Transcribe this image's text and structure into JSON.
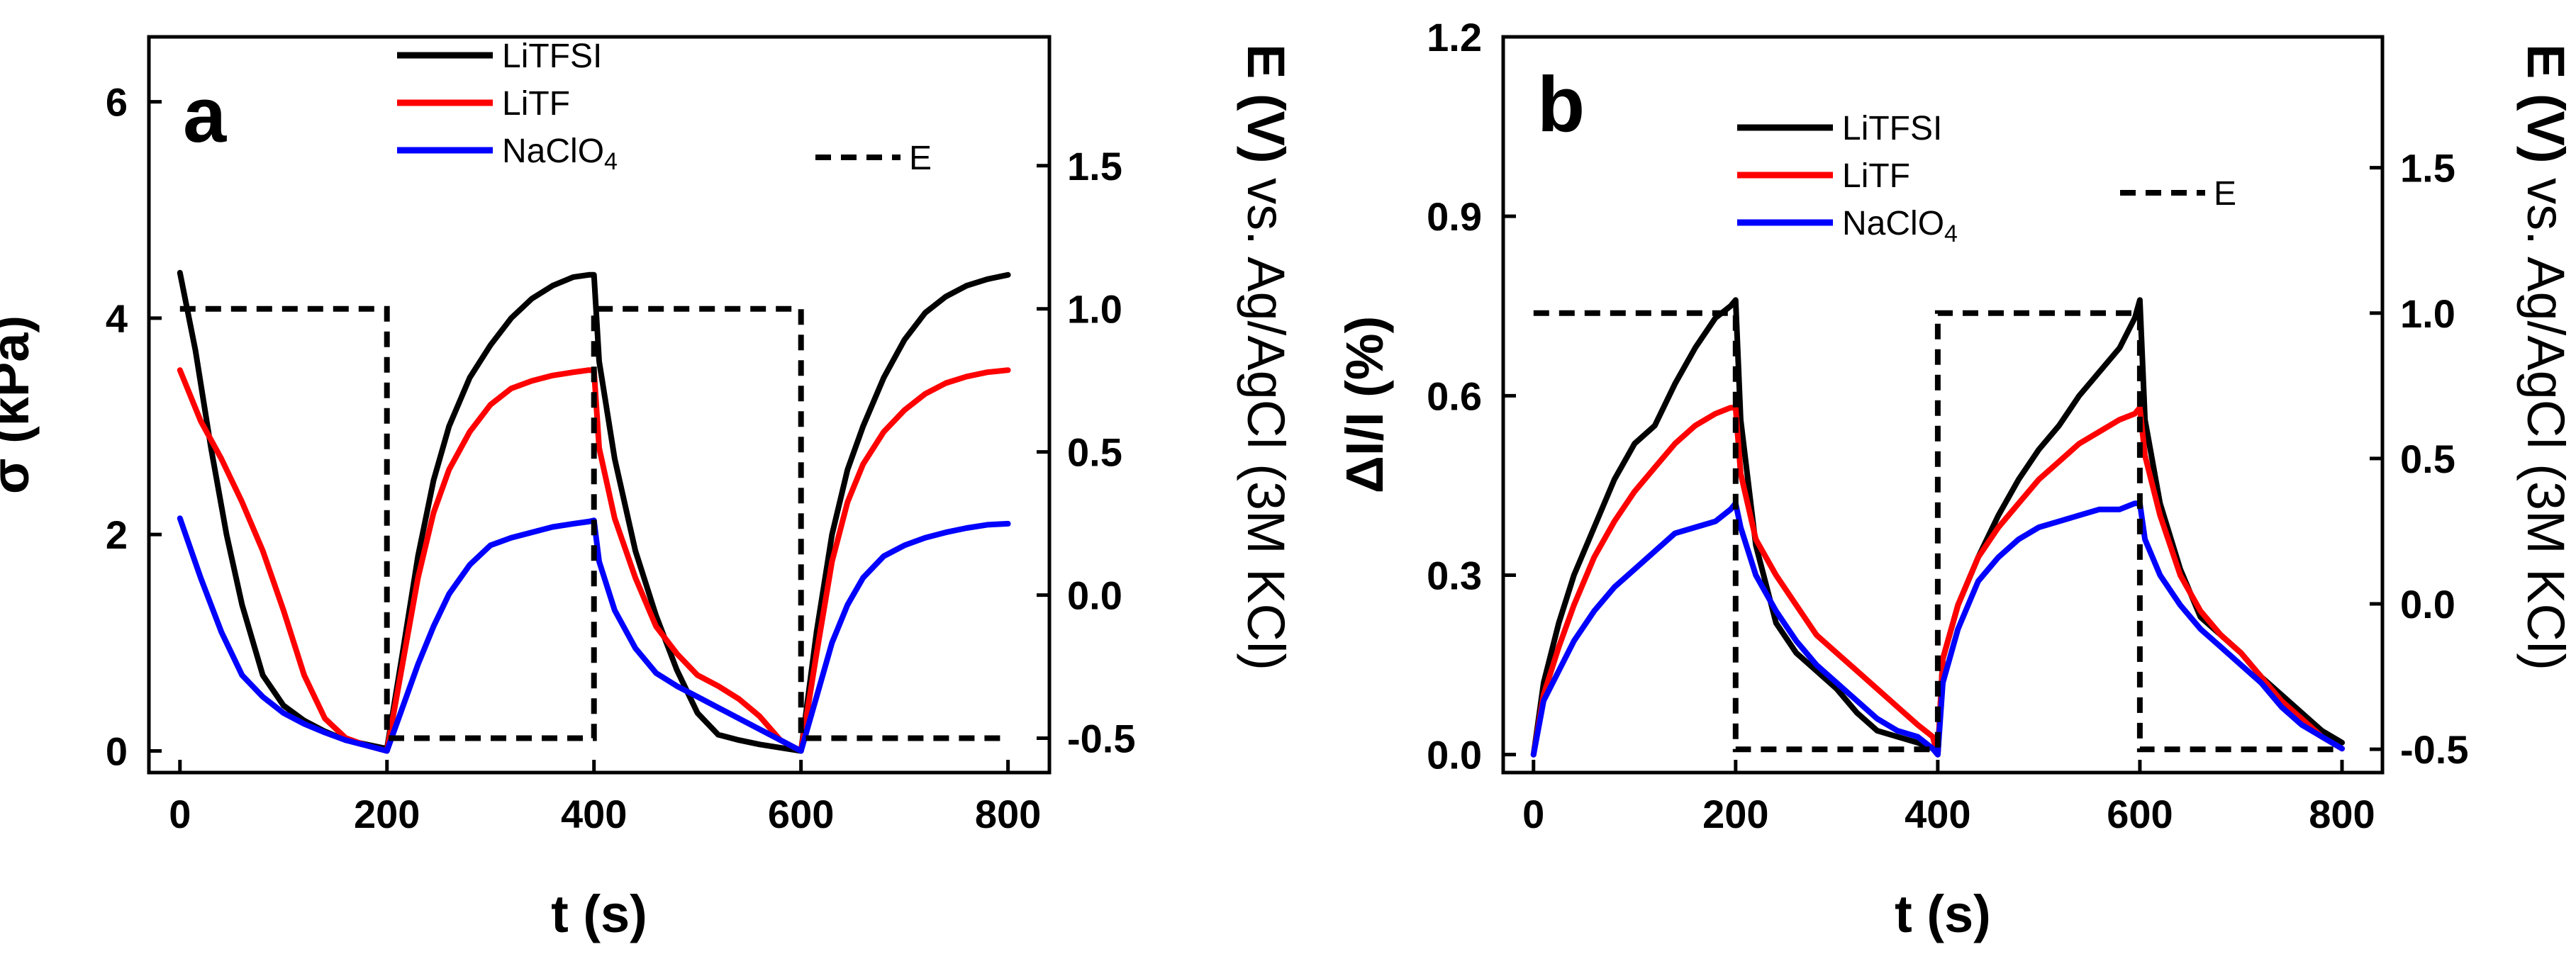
{
  "chart_data": [
    {
      "panel_label": "a",
      "type": "line",
      "xlabel": "t (s)",
      "ylabel": "σ (kPa)",
      "y2label": "E (V) vs. Ag/AgCl (3M KCl)",
      "y2label_parts": [
        "E (V)",
        " vs. Ag/AgCl (3M KCl)"
      ],
      "xlim": [
        -30,
        840
      ],
      "ylim": [
        -0.2,
        6.6
      ],
      "y2lim": [
        -0.62,
        1.95
      ],
      "xticks": [
        0,
        200,
        400,
        600,
        800
      ],
      "yticks": [
        0,
        2,
        4,
        6
      ],
      "y2ticks": [
        -0.5,
        0.0,
        0.5,
        1.0,
        1.5
      ],
      "y2tick_labels": [
        "-0.5",
        "0.0",
        "0.5",
        "1.0",
        "1.5"
      ],
      "legend": [
        {
          "name": "LiTFSI",
          "color": "#000000"
        },
        {
          "name": "LiTF",
          "color": "#ff0000"
        },
        {
          "name": "NaClO",
          "sub": "4",
          "color": "#0000ff"
        }
      ],
      "legend_e": {
        "name": "E",
        "style": "dashed",
        "color": "#000000"
      },
      "series": [
        {
          "name": "LiTFSI",
          "color": "#000000",
          "axis": "left",
          "x": [
            0,
            15,
            30,
            45,
            60,
            80,
            100,
            120,
            140,
            160,
            180,
            200,
            215,
            230,
            245,
            260,
            280,
            300,
            320,
            340,
            360,
            380,
            395,
            400,
            405,
            420,
            440,
            460,
            480,
            500,
            520,
            540,
            560,
            580,
            600,
            615,
            630,
            645,
            660,
            680,
            700,
            720,
            740,
            760,
            780,
            800
          ],
          "y": [
            4.42,
            3.7,
            2.8,
            2.0,
            1.35,
            0.7,
            0.42,
            0.28,
            0.18,
            0.1,
            0.06,
            0.02,
            0.9,
            1.8,
            2.5,
            3.0,
            3.45,
            3.75,
            4.0,
            4.18,
            4.3,
            4.38,
            4.4,
            4.4,
            3.6,
            2.7,
            1.85,
            1.25,
            0.75,
            0.35,
            0.15,
            0.1,
            0.06,
            0.03,
            0.0,
            1.1,
            2.0,
            2.6,
            3.0,
            3.45,
            3.8,
            4.05,
            4.2,
            4.3,
            4.36,
            4.4
          ]
        },
        {
          "name": "LiTF",
          "color": "#ff0000",
          "axis": "left",
          "x": [
            0,
            20,
            40,
            60,
            80,
            100,
            120,
            140,
            160,
            180,
            200,
            215,
            230,
            245,
            260,
            280,
            300,
            320,
            340,
            360,
            380,
            395,
            400,
            405,
            420,
            440,
            460,
            480,
            500,
            520,
            540,
            560,
            580,
            600,
            615,
            630,
            645,
            660,
            680,
            700,
            720,
            740,
            760,
            780,
            800
          ],
          "y": [
            3.52,
            3.05,
            2.7,
            2.3,
            1.85,
            1.3,
            0.7,
            0.3,
            0.12,
            0.05,
            0.0,
            0.8,
            1.6,
            2.2,
            2.6,
            2.95,
            3.2,
            3.35,
            3.42,
            3.47,
            3.5,
            3.52,
            3.52,
            2.8,
            2.15,
            1.6,
            1.15,
            0.9,
            0.7,
            0.6,
            0.48,
            0.32,
            0.1,
            0.0,
            0.9,
            1.75,
            2.3,
            2.65,
            2.95,
            3.15,
            3.3,
            3.4,
            3.46,
            3.5,
            3.52
          ]
        },
        {
          "name": "NaClO4",
          "color": "#0000ff",
          "axis": "left",
          "x": [
            0,
            20,
            40,
            60,
            80,
            100,
            120,
            140,
            160,
            180,
            200,
            215,
            230,
            245,
            260,
            280,
            300,
            320,
            340,
            360,
            380,
            395,
            400,
            405,
            420,
            440,
            460,
            480,
            500,
            520,
            540,
            560,
            580,
            600,
            615,
            630,
            645,
            660,
            680,
            700,
            720,
            740,
            760,
            780,
            800
          ],
          "y": [
            2.15,
            1.6,
            1.1,
            0.7,
            0.5,
            0.35,
            0.25,
            0.17,
            0.1,
            0.05,
            0.0,
            0.4,
            0.8,
            1.15,
            1.45,
            1.72,
            1.9,
            1.97,
            2.02,
            2.07,
            2.1,
            2.12,
            2.13,
            1.75,
            1.3,
            0.95,
            0.72,
            0.6,
            0.5,
            0.4,
            0.3,
            0.2,
            0.1,
            0.0,
            0.5,
            1.0,
            1.35,
            1.6,
            1.8,
            1.9,
            1.97,
            2.02,
            2.06,
            2.09,
            2.1
          ]
        },
        {
          "name": "E",
          "color": "#000000",
          "axis": "right",
          "style": "dashed",
          "x": [
            0,
            200,
            200,
            400,
            400,
            600,
            600,
            800
          ],
          "y": [
            1.0,
            1.0,
            -0.5,
            -0.5,
            1.0,
            1.0,
            -0.5,
            -0.5
          ]
        }
      ]
    },
    {
      "panel_label": "b",
      "type": "line",
      "xlabel": "t (s)",
      "ylabel": "ΔI/I (%)",
      "y2label": "E (V) vs. Ag/AgCl (3M KCl)",
      "y2label_parts": [
        "E (V)",
        " vs. Ag/AgCl (3M KCl)"
      ],
      "xlim": [
        -30,
        840
      ],
      "ylim": [
        -0.03,
        1.2
      ],
      "y2lim": [
        -0.58,
        1.95
      ],
      "xticks": [
        0,
        200,
        400,
        600,
        800
      ],
      "yticks": [
        0.0,
        0.3,
        0.6,
        0.9,
        1.2
      ],
      "ytick_labels": [
        "0.0",
        "0.3",
        "0.6",
        "0.9",
        "1.2"
      ],
      "y2ticks": [
        -0.5,
        0.0,
        0.5,
        1.0,
        1.5
      ],
      "y2tick_labels": [
        "-0.5",
        "0.0",
        "0.5",
        "1.0",
        "1.5"
      ],
      "legend": [
        {
          "name": "LiTFSI",
          "color": "#000000"
        },
        {
          "name": "LiTF",
          "color": "#ff0000"
        },
        {
          "name": "NaClO",
          "sub": "4",
          "color": "#0000ff"
        }
      ],
      "legend_e": {
        "name": "E",
        "style": "dashed",
        "color": "#000000"
      },
      "series": [
        {
          "name": "LiTFSI",
          "color": "#000000",
          "axis": "left",
          "x": [
            0,
            10,
            25,
            40,
            60,
            80,
            100,
            120,
            140,
            160,
            180,
            195,
            200,
            205,
            220,
            240,
            260,
            280,
            300,
            320,
            340,
            360,
            380,
            395,
            400,
            405,
            420,
            440,
            460,
            480,
            500,
            520,
            540,
            560,
            580,
            595,
            600,
            605,
            620,
            640,
            660,
            680,
            700,
            720,
            740,
            760,
            780,
            800
          ],
          "y": [
            0.0,
            0.12,
            0.22,
            0.3,
            0.38,
            0.46,
            0.52,
            0.55,
            0.62,
            0.68,
            0.73,
            0.75,
            0.76,
            0.56,
            0.35,
            0.22,
            0.17,
            0.14,
            0.11,
            0.07,
            0.04,
            0.03,
            0.02,
            0.01,
            0.0,
            0.16,
            0.25,
            0.33,
            0.4,
            0.46,
            0.51,
            0.55,
            0.6,
            0.64,
            0.68,
            0.73,
            0.76,
            0.56,
            0.42,
            0.31,
            0.23,
            0.2,
            0.17,
            0.13,
            0.1,
            0.07,
            0.04,
            0.02
          ]
        },
        {
          "name": "LiTF",
          "color": "#ff0000",
          "axis": "left",
          "x": [
            0,
            10,
            25,
            40,
            60,
            80,
            100,
            120,
            140,
            160,
            180,
            195,
            200,
            205,
            220,
            240,
            260,
            280,
            300,
            320,
            340,
            360,
            380,
            395,
            400,
            405,
            420,
            440,
            460,
            480,
            500,
            520,
            540,
            560,
            580,
            595,
            600,
            605,
            620,
            640,
            660,
            680,
            700,
            720,
            740,
            760,
            780,
            800
          ],
          "y": [
            0.0,
            0.1,
            0.18,
            0.25,
            0.33,
            0.39,
            0.44,
            0.48,
            0.52,
            0.55,
            0.57,
            0.58,
            0.58,
            0.47,
            0.36,
            0.3,
            0.25,
            0.2,
            0.17,
            0.14,
            0.11,
            0.08,
            0.05,
            0.03,
            0.0,
            0.16,
            0.25,
            0.33,
            0.38,
            0.42,
            0.46,
            0.49,
            0.52,
            0.54,
            0.56,
            0.57,
            0.58,
            0.5,
            0.4,
            0.3,
            0.24,
            0.2,
            0.17,
            0.13,
            0.09,
            0.06,
            0.03,
            0.01
          ]
        },
        {
          "name": "NaClO4",
          "color": "#0000ff",
          "axis": "left",
          "x": [
            0,
            10,
            25,
            40,
            60,
            80,
            100,
            120,
            140,
            160,
            180,
            195,
            200,
            205,
            220,
            240,
            260,
            280,
            300,
            320,
            340,
            360,
            380,
            395,
            400,
            405,
            420,
            440,
            460,
            480,
            500,
            520,
            540,
            560,
            580,
            595,
            600,
            605,
            620,
            640,
            660,
            680,
            700,
            720,
            740,
            760,
            780,
            800
          ],
          "y": [
            0.0,
            0.09,
            0.14,
            0.19,
            0.24,
            0.28,
            0.31,
            0.34,
            0.37,
            0.38,
            0.39,
            0.41,
            0.42,
            0.38,
            0.3,
            0.24,
            0.19,
            0.15,
            0.12,
            0.09,
            0.06,
            0.04,
            0.03,
            0.01,
            0.0,
            0.12,
            0.21,
            0.29,
            0.33,
            0.36,
            0.38,
            0.39,
            0.4,
            0.41,
            0.41,
            0.42,
            0.42,
            0.36,
            0.3,
            0.25,
            0.21,
            0.18,
            0.15,
            0.12,
            0.08,
            0.05,
            0.03,
            0.01
          ]
        },
        {
          "name": "E",
          "color": "#000000",
          "axis": "right",
          "style": "dashed",
          "x": [
            0,
            200,
            200,
            400,
            400,
            600,
            600,
            800
          ],
          "y": [
            1.0,
            1.0,
            -0.5,
            -0.5,
            1.0,
            1.0,
            -0.5,
            -0.5
          ]
        }
      ]
    }
  ]
}
